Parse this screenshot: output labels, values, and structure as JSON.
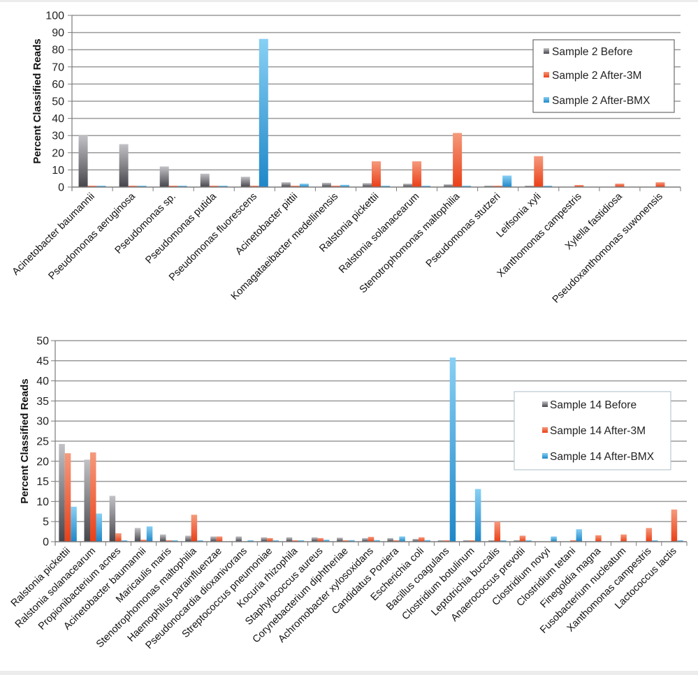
{
  "colors": {
    "before_light": "#c2c2c6",
    "before_dark": "#45454b",
    "after3m_light": "#f59a7c",
    "after3m_dark": "#ea3f17",
    "afterbmx_light": "#88d0f4",
    "afterbmx_dark": "#1f87c8",
    "grid": "#9a9a9a",
    "axis": "#7a7a7a"
  },
  "chart_data": [
    {
      "type": "bar",
      "title": "",
      "xlabel": "",
      "ylabel": "Percent Classified Reads",
      "ylim": [
        0,
        100
      ],
      "yticks": [
        0,
        10,
        20,
        30,
        40,
        50,
        60,
        70,
        80,
        90,
        100
      ],
      "grid": true,
      "legend_position": "top-right",
      "categories": [
        "Acinetobacter baumannii",
        "Pseudomonas aeruginosa",
        "Pseudomonas sp.",
        "Pseudomonas putida",
        "Pseudomonas fluorescens",
        "Acinetobacter pittii",
        "Komagataeibacter medellinensis",
        "Ralstonia pickettii",
        "Ralstonia solanacearum",
        "Stenotrophomonas maltophilia",
        "Pseudomonas stutzeri",
        "Leifsonia xyli",
        "Xanthomonas campestris",
        "Xylella fastidiosa",
        "Pseudoxanthomonas suwonensis"
      ],
      "series": [
        {
          "name": "Sample 2 Before",
          "color_key": "before",
          "values": [
            30,
            25,
            12,
            7.8,
            6,
            2.8,
            2.5,
            2.3,
            2,
            1.6,
            0.4,
            0.4,
            0,
            0,
            0
          ]
        },
        {
          "name": "Sample 2 After-3M",
          "color_key": "after3m",
          "values": [
            0.5,
            0.5,
            0.5,
            0.5,
            0.5,
            0.5,
            0.5,
            15,
            15,
            31.5,
            0.5,
            18,
            1.2,
            2,
            2.8
          ]
        },
        {
          "name": "Sample 2 After-BMX",
          "color_key": "afterbmx",
          "values": [
            0.5,
            0.5,
            0.5,
            0.5,
            86.3,
            2,
            1.3,
            0.3,
            0.3,
            0.3,
            6.7,
            0.4,
            0,
            0,
            0
          ]
        }
      ]
    },
    {
      "type": "bar",
      "title": "",
      "xlabel": "",
      "ylabel": "Percent Classified Reads",
      "ylim": [
        0,
        50
      ],
      "yticks": [
        0,
        5,
        10,
        15,
        20,
        25,
        30,
        35,
        40,
        45,
        50
      ],
      "grid": true,
      "legend_position": "right",
      "categories": [
        "Ralstonia pickettii",
        "Ralstonia solanacearum",
        "Propionibacterium acnes",
        "Acinetobacter baumannii",
        "Maricaulis maris",
        "Stenotrophomonas maltophilia",
        "Haemophilus parainfluenzae",
        "Pseudonocardia dioxanivorans",
        "Streptococcus pneumoniae",
        "Kocuria rhizophila",
        "Staphylococcus aureus",
        "Corynebacterium diphtheriae",
        "Achromobacter xylosoxidans",
        "Candidatus Portiera",
        "Escherichia coli",
        "Bacillus coagulans",
        "Clostridium botulinum",
        "Leptotrichia buccalis",
        "Anaerococcus prevotii",
        "Clostridium novyi",
        "Clostridium tetani",
        "Finegoldia magna",
        "Fusobacterium nucleatum",
        "Xanthomonas campestris",
        "Lactococcus lactis"
      ],
      "series": [
        {
          "name": "Sample 14 Before",
          "color_key": "before",
          "values": [
            24.3,
            20.4,
            11.4,
            3.4,
            1.8,
            1.5,
            1.3,
            1.3,
            1.1,
            1.1,
            1.1,
            1.0,
            0.9,
            0.9,
            0.7,
            0.1,
            0.1,
            0.1,
            0.1,
            0,
            0,
            0,
            0,
            0,
            0
          ]
        },
        {
          "name": "Sample 14 After-3M",
          "color_key": "after3m",
          "values": [
            22.0,
            22.2,
            2.1,
            0.5,
            0.2,
            6.7,
            1.3,
            0,
            0.9,
            0.2,
            0.9,
            0.1,
            1.2,
            0.1,
            1.1,
            0.1,
            0.1,
            5.0,
            1.5,
            0,
            0.2,
            1.6,
            1.8,
            3.4,
            8.0
          ]
        },
        {
          "name": "Sample 14 After-BMX",
          "color_key": "afterbmx",
          "values": [
            8.7,
            7.0,
            0.1,
            3.8,
            0.1,
            0.1,
            0,
            0.1,
            0.1,
            0.1,
            0.5,
            0.4,
            0.4,
            1.3,
            0.4,
            45.8,
            13.1,
            0.2,
            0.2,
            1.3,
            3.1,
            0,
            0,
            0.1,
            0.1
          ]
        }
      ]
    }
  ]
}
